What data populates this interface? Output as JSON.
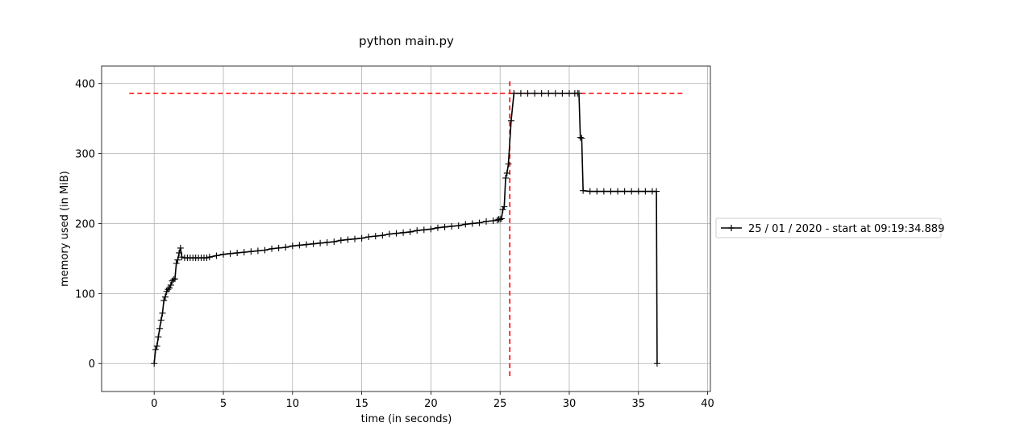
{
  "chart_data": {
    "type": "line",
    "title": "python main.py",
    "xlabel": "time (in seconds)",
    "ylabel": "memory used (in MiB)",
    "xlim": [
      -3.8,
      40.2
    ],
    "ylim": [
      -40,
      425
    ],
    "xticks": [
      0,
      5,
      10,
      15,
      20,
      25,
      30,
      35,
      40
    ],
    "yticks": [
      0,
      100,
      200,
      300,
      400
    ],
    "grid": true,
    "legend_position": "outside-right",
    "series": [
      {
        "name": "25 / 01 / 2020 - start at 09:19:34.889",
        "color": "#000000",
        "marker": "+",
        "x": [
          0.0,
          0.1,
          0.2,
          0.3,
          0.4,
          0.5,
          0.6,
          0.7,
          0.8,
          0.9,
          1.0,
          1.1,
          1.2,
          1.3,
          1.4,
          1.5,
          1.6,
          1.7,
          1.8,
          1.9,
          2.0,
          2.2,
          2.4,
          2.6,
          2.8,
          3.0,
          3.2,
          3.4,
          3.6,
          3.8,
          4.0,
          4.5,
          5.0,
          5.5,
          6.0,
          6.5,
          7.0,
          7.5,
          8.0,
          8.5,
          9.0,
          9.5,
          10.0,
          10.5,
          11.0,
          11.5,
          12.0,
          12.5,
          13.0,
          13.5,
          14.0,
          14.5,
          15.0,
          15.5,
          16.0,
          16.5,
          17.0,
          17.5,
          18.0,
          18.5,
          19.0,
          19.5,
          20.0,
          20.5,
          21.0,
          21.5,
          22.0,
          22.5,
          23.0,
          23.5,
          24.0,
          24.5,
          24.8,
          24.9,
          25.0,
          25.1,
          25.2,
          25.3,
          25.4,
          25.5,
          25.6,
          25.8,
          26.0,
          26.5,
          27.0,
          27.5,
          28.0,
          28.5,
          29.0,
          29.5,
          30.0,
          30.4,
          30.6,
          30.7,
          30.8,
          30.9,
          31.0,
          31.5,
          32.0,
          32.5,
          33.0,
          33.5,
          34.0,
          34.5,
          35.0,
          35.5,
          36.0,
          36.3,
          36.35
        ],
        "values": [
          0,
          20,
          25,
          38,
          50,
          62,
          72,
          90,
          95,
          103,
          106,
          108,
          112,
          118,
          120,
          121,
          143,
          148,
          158,
          165,
          152,
          151,
          151,
          151,
          151,
          151,
          151,
          151,
          151,
          151,
          152,
          154,
          156,
          157,
          158,
          159,
          160,
          161,
          162,
          164,
          165,
          166,
          168,
          169,
          170,
          171,
          172,
          173,
          174,
          176,
          177,
          178,
          179,
          181,
          182,
          183,
          185,
          186,
          187,
          188,
          190,
          191,
          192,
          194,
          195,
          196,
          197,
          199,
          200,
          201,
          203,
          204,
          205,
          206,
          206,
          207,
          220,
          224,
          265,
          272,
          285,
          347,
          386,
          386,
          386,
          386,
          386,
          386,
          386,
          386,
          386,
          386,
          386,
          386,
          323,
          322,
          247,
          246,
          246,
          246,
          246,
          246,
          246,
          246,
          246,
          246,
          246,
          246,
          0
        ]
      }
    ],
    "reference_lines": [
      {
        "orientation": "horizontal",
        "y": 386,
        "x_from": -1.8,
        "x_to": 38.2,
        "color": "#ff0000",
        "style": "dashed"
      },
      {
        "orientation": "vertical",
        "x": 25.7,
        "y_from": -18,
        "y_to": 406,
        "color": "#ff0000",
        "style": "dashed"
      }
    ]
  }
}
